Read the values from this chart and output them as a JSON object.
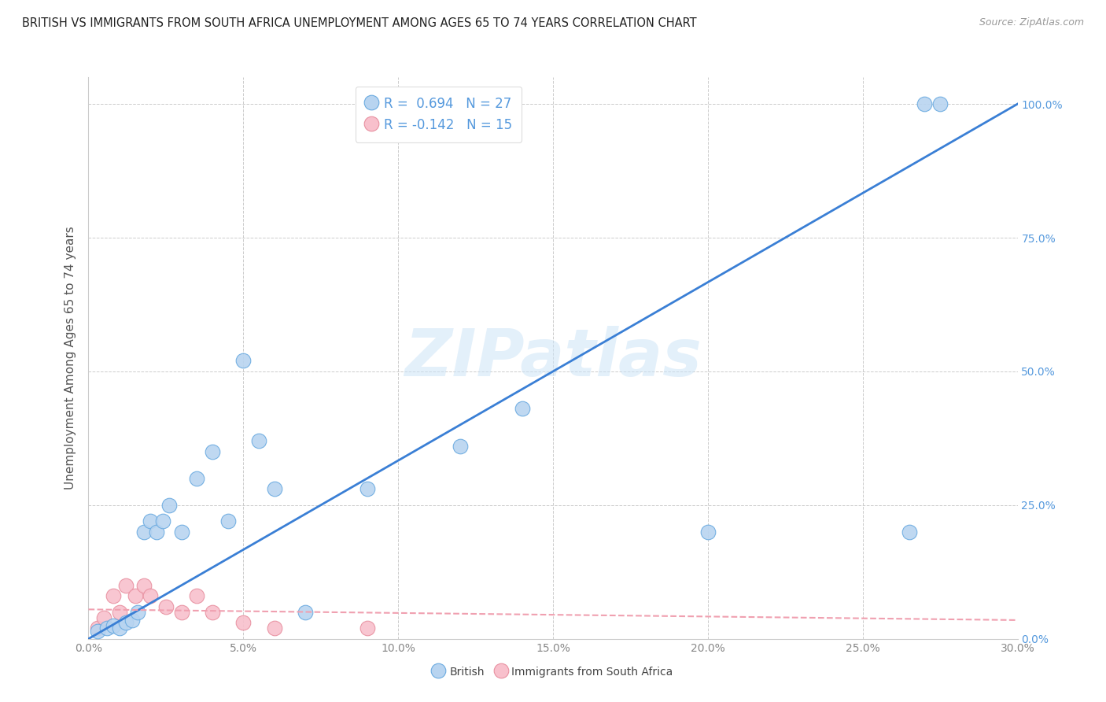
{
  "title": "BRITISH VS IMMIGRANTS FROM SOUTH AFRICA UNEMPLOYMENT AMONG AGES 65 TO 74 YEARS CORRELATION CHART",
  "source": "Source: ZipAtlas.com",
  "ylabel_label": "Unemployment Among Ages 65 to 74 years",
  "legend_label1": "British",
  "legend_label2": "Immigrants from South Africa",
  "r1": 0.694,
  "n1": 27,
  "r2": -0.142,
  "n2": 15,
  "watermark": "ZIPatlas",
  "blue_scatter_x": [
    0.3,
    0.6,
    0.8,
    1.0,
    1.2,
    1.4,
    1.6,
    1.8,
    2.0,
    2.2,
    2.4,
    2.6,
    3.0,
    3.5,
    4.0,
    4.5,
    5.0,
    5.5,
    6.0,
    7.0,
    9.0,
    12.0,
    14.0,
    20.0,
    26.5,
    27.0,
    27.5
  ],
  "blue_scatter_y": [
    1.5,
    2.0,
    2.5,
    2.0,
    3.0,
    3.5,
    5.0,
    20.0,
    22.0,
    20.0,
    22.0,
    25.0,
    20.0,
    30.0,
    35.0,
    22.0,
    52.0,
    37.0,
    28.0,
    5.0,
    28.0,
    36.0,
    43.0,
    20.0,
    20.0,
    100.0,
    100.0
  ],
  "pink_scatter_x": [
    0.3,
    0.5,
    0.8,
    1.0,
    1.2,
    1.5,
    1.8,
    2.0,
    2.5,
    3.0,
    3.5,
    4.0,
    5.0,
    6.0,
    9.0
  ],
  "pink_scatter_y": [
    2.0,
    4.0,
    8.0,
    5.0,
    10.0,
    8.0,
    10.0,
    8.0,
    6.0,
    5.0,
    8.0,
    5.0,
    3.0,
    2.0,
    2.0
  ],
  "blue_line_x0": 0.0,
  "blue_line_y0": 0.0,
  "blue_line_x1": 30.0,
  "blue_line_y1": 100.0,
  "pink_line_x0": 0.0,
  "pink_line_y0": 5.5,
  "pink_line_x1": 30.0,
  "pink_line_y1": 3.5,
  "blue_line_color": "#3a7fd5",
  "pink_line_color": "#f0a0b0",
  "blue_scatter_color": "#b8d4f0",
  "pink_scatter_color": "#f8c0cc",
  "blue_edge_color": "#6aaae0",
  "pink_edge_color": "#e890a0",
  "grid_color": "#cccccc",
  "background_color": "#ffffff",
  "title_color": "#222222",
  "right_axis_color": "#5599dd",
  "legend_text_color": "#5599dd",
  "source_color": "#999999",
  "ylabel_color": "#555555",
  "tick_color": "#888888",
  "x_tick_vals": [
    0,
    5,
    10,
    15,
    20,
    25,
    30
  ],
  "x_tick_labels": [
    "0.0%",
    "5.0%",
    "10.0%",
    "15.0%",
    "20.0%",
    "25.0%",
    "30.0%"
  ],
  "y_tick_vals": [
    0,
    25,
    50,
    75,
    100
  ],
  "y_tick_labels": [
    "0.0%",
    "25.0%",
    "50.0%",
    "75.0%",
    "100.0%"
  ],
  "xlim": [
    0,
    30
  ],
  "ylim": [
    0,
    105
  ],
  "scatter_size": 180,
  "title_fontsize": 10.5,
  "source_fontsize": 9,
  "tick_fontsize": 10,
  "ylabel_fontsize": 11,
  "legend_fontsize": 12,
  "watermark_fontsize": 60,
  "watermark_color": "#cce4f7",
  "watermark_alpha": 0.55
}
